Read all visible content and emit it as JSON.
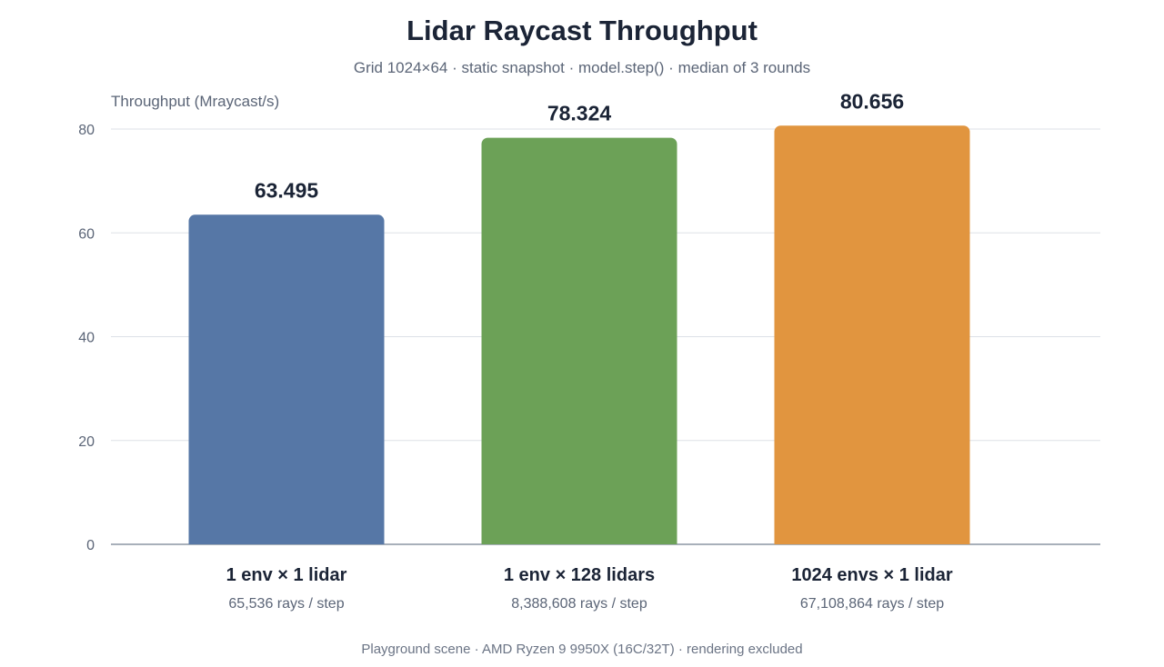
{
  "chart_data": {
    "type": "bar",
    "title": "Lidar Raycast Throughput",
    "subtitle": "Grid 1024×64 · static snapshot · model.step() · median of 3 rounds",
    "ylabel": "Throughput (Mraycast/s)",
    "xlabel": "",
    "ylim": [
      0,
      80
    ],
    "yticks": [
      0,
      20,
      40,
      60,
      80
    ],
    "grid": true,
    "categories": [
      "1 env × 1 lidar",
      "1 env × 128 lidars",
      "1024 envs × 1 lidar"
    ],
    "category_sublabels": [
      "65,536 rays / step",
      "8,388,608 rays / step",
      "67,108,864 rays / step"
    ],
    "values": [
      63.495,
      78.324,
      80.656
    ],
    "value_labels": [
      "63.495",
      "78.324",
      "80.656"
    ],
    "colors": [
      "#5677a6",
      "#6ca157",
      "#e1953f"
    ],
    "footer": "Playground scene · AMD Ryzen 9 9950X (16C/32T) · rendering excluded"
  }
}
